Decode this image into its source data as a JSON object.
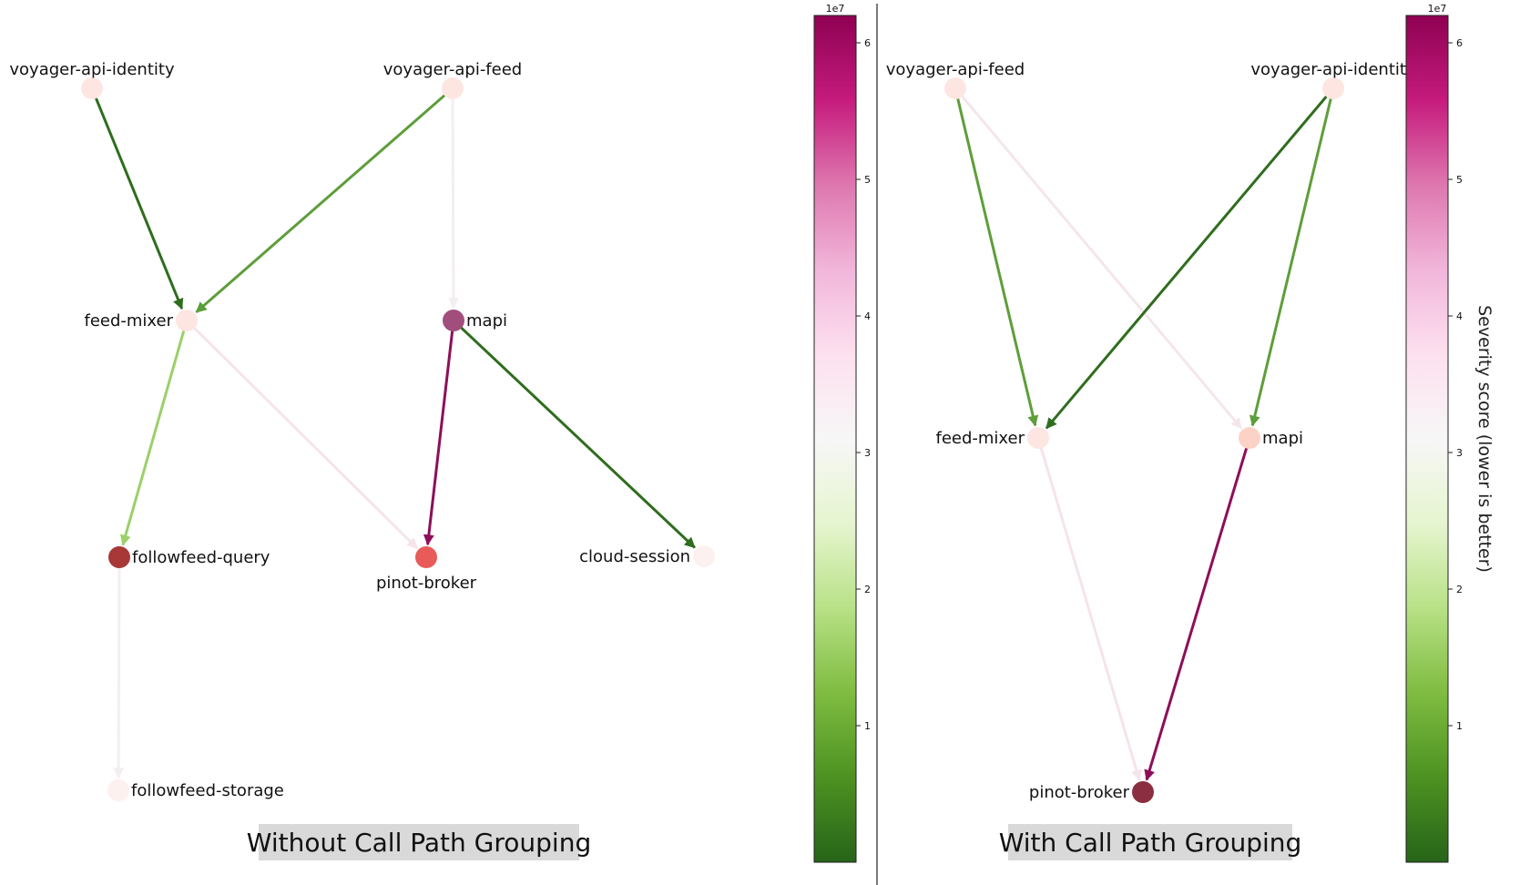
{
  "panels": [
    {
      "id": "left",
      "caption": "Without Call Path Grouping",
      "nodes": [
        {
          "id": "vai",
          "label": "voyager-api-identity",
          "severity": 2500000.0,
          "color": "#fde6e2"
        },
        {
          "id": "vaf",
          "label": "voyager-api-feed",
          "severity": 2500000.0,
          "color": "#fde6e2"
        },
        {
          "id": "fm",
          "label": "feed-mixer",
          "severity": 2500000.0,
          "color": "#fde6e2"
        },
        {
          "id": "mapi",
          "label": "mapi",
          "severity": 48000000.0,
          "color": "#a24e7d"
        },
        {
          "id": "ffq",
          "label": "followfeed-query",
          "severity": 52000000.0,
          "color": "#a83838"
        },
        {
          "id": "pb",
          "label": "pinot-broker",
          "severity": 35000000.0,
          "color": "#e85b58"
        },
        {
          "id": "cs",
          "label": "cloud-session",
          "severity": 1000000.0,
          "color": "#fdf1ef"
        },
        {
          "id": "ffs",
          "label": "followfeed-storage",
          "severity": 1000000.0,
          "color": "#fdf1ef"
        }
      ],
      "edges": [
        {
          "from": "vai",
          "to": "fm",
          "severity": 1000000.0,
          "color": "#2f6d1e"
        },
        {
          "from": "vaf",
          "to": "fm",
          "severity": 10000000.0,
          "color": "#5e9e3a"
        },
        {
          "from": "vaf",
          "to": "mapi",
          "severity": 32000000.0,
          "color": "#f3eef1"
        },
        {
          "from": "fm",
          "to": "ffq",
          "severity": 17000000.0,
          "color": "#9bd06a"
        },
        {
          "from": "fm",
          "to": "pb",
          "severity": 33000000.0,
          "color": "#f5e4ea"
        },
        {
          "from": "mapi",
          "to": "pb",
          "severity": 60000000.0,
          "color": "#8e0e5a"
        },
        {
          "from": "mapi",
          "to": "cs",
          "severity": 1000000.0,
          "color": "#2f6d1e"
        },
        {
          "from": "ffq",
          "to": "ffs",
          "severity": 31000000.0,
          "color": "#f3eff1"
        }
      ]
    },
    {
      "id": "right",
      "caption": "With Call Path Grouping",
      "nodes": [
        {
          "id": "vaf",
          "label": "voyager-api-feed",
          "severity": 2500000.0,
          "color": "#fde6e2"
        },
        {
          "id": "vai",
          "label": "voyager-api-identity",
          "severity": 2500000.0,
          "color": "#fde6e2"
        },
        {
          "id": "fm",
          "label": "feed-mixer",
          "severity": 2500000.0,
          "color": "#fde6e2"
        },
        {
          "id": "mapi",
          "label": "mapi",
          "severity": 4000000.0,
          "color": "#fcd2c6"
        },
        {
          "id": "pb",
          "label": "pinot-broker",
          "severity": 61000000.0,
          "color": "#8c2e41"
        }
      ],
      "edges": [
        {
          "from": "vaf",
          "to": "fm",
          "severity": 10000000.0,
          "color": "#5e9e3a"
        },
        {
          "from": "vaf",
          "to": "mapi",
          "severity": 33000000.0,
          "color": "#f4e6ec"
        },
        {
          "from": "vai",
          "to": "fm",
          "severity": 1000000.0,
          "color": "#2f6d1e"
        },
        {
          "from": "vai",
          "to": "mapi",
          "severity": 10000000.0,
          "color": "#5e9e3a"
        },
        {
          "from": "fm",
          "to": "pb",
          "severity": 33000000.0,
          "color": "#f5e4ea"
        },
        {
          "from": "mapi",
          "to": "pb",
          "severity": 60000000.0,
          "color": "#8e0e5a"
        }
      ]
    }
  ],
  "colorbars": [
    {
      "id": "cb-left",
      "exponent": "1e7",
      "ticks": [
        "1",
        "2",
        "3",
        "4",
        "5",
        "6"
      ],
      "label": ""
    },
    {
      "id": "cb-right",
      "exponent": "1e7",
      "ticks": [
        "1",
        "2",
        "3",
        "4",
        "5",
        "6"
      ],
      "label": "Severity score (lower is better)"
    }
  ],
  "colormap": [
    "#276419",
    "#4d9221",
    "#7fbc41",
    "#b8e186",
    "#e6f5d0",
    "#f7f7f7",
    "#fde0ef",
    "#f1b6da",
    "#de77ae",
    "#c51b7d",
    "#8e0152"
  ]
}
